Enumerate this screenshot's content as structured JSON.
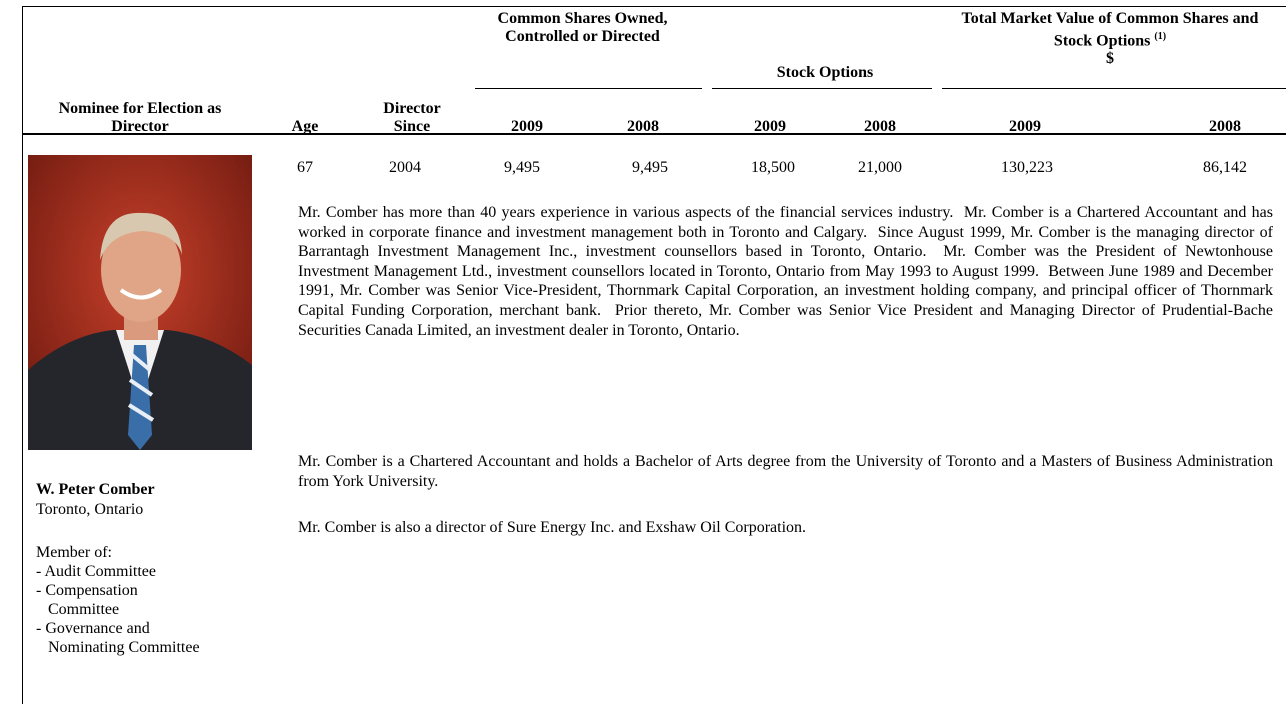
{
  "table": {
    "header": {
      "nominee": "Nominee for Election as Director",
      "age": "Age",
      "director_since": "Director Since",
      "common_shares": "Common Shares Owned, Controlled or Directed",
      "stock_options": "Stock Options",
      "market_value": {
        "title": "Total Market Value of Common Shares and Stock Options",
        "footnote": "(1)",
        "unit": "$"
      },
      "years": [
        "2009",
        "2008",
        "2009",
        "2008",
        "2009",
        "2008"
      ]
    },
    "rows": [
      {
        "name": "W. Peter Comber",
        "location": "Toronto, Ontario",
        "member_of": "Member of:",
        "committees": [
          "- Audit Committee",
          "- Compensation Committee",
          "- Governance and Nominating Committee"
        ],
        "values": [
          "67",
          "2004",
          "9,495",
          "9,495",
          "18,500",
          "21,000",
          "130,223",
          "86,142"
        ],
        "bio": [
          "Mr. Comber has more than 40 years experience in various aspects of the financial services industry.  Mr. Comber is a Chartered Accountant and has worked in corporate finance and investment management both in Toronto and Calgary.  Since August 1999, Mr. Comber is the managing director of Barrantagh Investment Management Inc., investment counsellors based in Toronto, Ontario.  Mr. Comber was the President of Newtonhouse Investment Management Ltd., investment counsellors located in Toronto, Ontario from May 1993 to August 1999.  Between June 1989 and December 1991, Mr. Comber was Senior Vice-President, Thornmark Capital Corporation, an investment holding company, and principal officer of Thornmark Capital Funding Corporation, merchant bank.  Prior thereto, Mr. Comber was Senior Vice President and Managing Director of Prudential-Bache Securities Canada Limited, an investment dealer in Toronto, Ontario.",
          "Mr. Comber is a Chartered Accountant and holds a Bachelor of Arts degree from the University of Toronto and a Masters of Business Administration from York University.",
          "Mr. Comber is also a director of Sure Energy Inc. and Exshaw Oil Corporation."
        ]
      }
    ]
  }
}
